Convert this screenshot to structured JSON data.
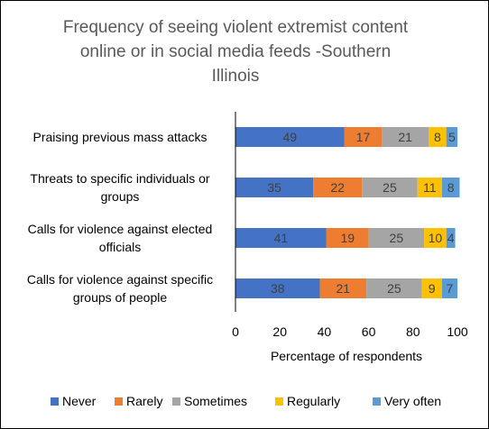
{
  "chart_data": {
    "type": "bar",
    "orientation": "horizontal",
    "stacked": true,
    "title_lines": [
      "Frequency of seeing violent extremist content",
      "online or in social media feeds -Southern",
      "Illinois"
    ],
    "categories": [
      {
        "lines": [
          "Praising previous mass attacks"
        ]
      },
      {
        "lines": [
          "Threats to specific individuals or",
          "groups"
        ]
      },
      {
        "lines": [
          "Calls for violence against elected",
          "officials"
        ]
      },
      {
        "lines": [
          "Calls for violence against specific",
          "groups of people"
        ]
      }
    ],
    "series": [
      {
        "name": "Never",
        "color": "#4472C4",
        "values": [
          49,
          35,
          41,
          38
        ]
      },
      {
        "name": "Rarely",
        "color": "#ED7D31",
        "values": [
          17,
          22,
          19,
          21
        ]
      },
      {
        "name": "Sometimes",
        "color": "#A5A5A5",
        "values": [
          21,
          25,
          25,
          25
        ]
      },
      {
        "name": "Regularly",
        "color": "#FFC000",
        "values": [
          8,
          11,
          10,
          9
        ]
      },
      {
        "name": "Very often",
        "color": "#5B9BD5",
        "values": [
          5,
          8,
          4,
          7
        ]
      }
    ],
    "xlabel": "Percentage of respondents",
    "xlim": [
      0,
      100
    ],
    "xticks": [
      0,
      20,
      40,
      60,
      80,
      100
    ],
    "grid": false,
    "legend_position": "bottom"
  }
}
